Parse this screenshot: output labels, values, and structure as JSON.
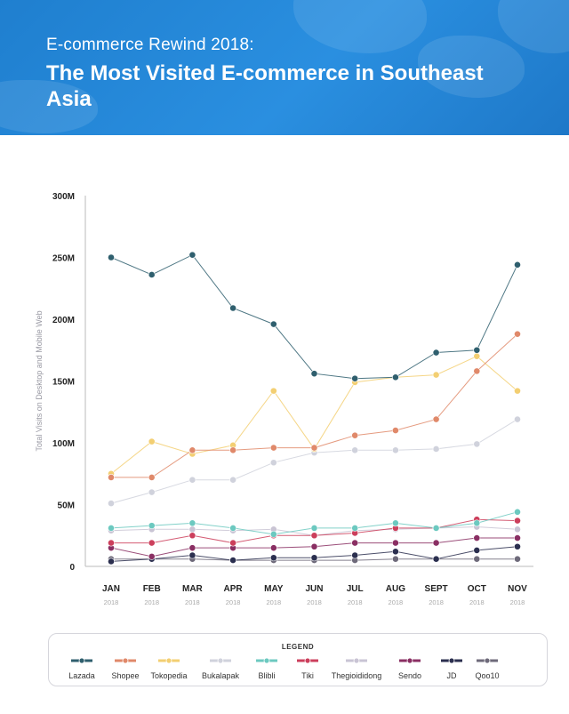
{
  "header": {
    "kicker": "E-commerce Rewind 2018:",
    "headline": "The Most Visited E-commerce in Southeast Asia"
  },
  "chart_data": {
    "type": "line",
    "ylabel": "Total Visits on Desktop and Mobile Web",
    "ylim": [
      0,
      300
    ],
    "y_ticks": [
      "0",
      "50M",
      "100M",
      "150M",
      "200M",
      "250M",
      "300M"
    ],
    "x": [
      "JAN",
      "FEB",
      "MAR",
      "APR",
      "MAY",
      "JUN",
      "JUL",
      "AUG",
      "SEPT",
      "OCT",
      "NOV"
    ],
    "x_sub": [
      "2018",
      "2018",
      "2018",
      "2018",
      "2018",
      "2018",
      "2018",
      "2018",
      "2018",
      "2018",
      "2018"
    ],
    "legend_title": "LEGEND",
    "series": [
      {
        "name": "Lazada",
        "color": "#2f5f6e",
        "values": [
          250,
          236,
          252,
          209,
          196,
          156,
          152,
          153,
          173,
          175,
          244
        ]
      },
      {
        "name": "Shopee",
        "color": "#e0896a",
        "values": [
          72,
          72,
          94,
          94,
          96,
          96,
          106,
          110,
          119,
          158,
          188
        ]
      },
      {
        "name": "Tokopedia",
        "color": "#f3cf72",
        "values": [
          75,
          101,
          91,
          98,
          142,
          95,
          149,
          153,
          155,
          170,
          142
        ]
      },
      {
        "name": "Bukalapak",
        "color": "#d0d2dc",
        "values": [
          51,
          60,
          70,
          70,
          84,
          92,
          94,
          94,
          95,
          99,
          119
        ]
      },
      {
        "name": "Blibli",
        "color": "#6cc9c0",
        "values": [
          31,
          33,
          35,
          31,
          26,
          31,
          31,
          35,
          31,
          35,
          44
        ]
      },
      {
        "name": "Tiki",
        "color": "#cc3f5c",
        "values": [
          19,
          19,
          25,
          19,
          25,
          25,
          27,
          31,
          31,
          38,
          37
        ]
      },
      {
        "name": "Thegioididong",
        "color": "#c9c4d4",
        "values": [
          29,
          30,
          30,
          29,
          30,
          25,
          29,
          30,
          31,
          32,
          30
        ]
      },
      {
        "name": "Sendo",
        "color": "#8a2f63",
        "values": [
          15,
          8,
          15,
          15,
          15,
          16,
          19,
          19,
          19,
          23,
          23
        ]
      },
      {
        "name": "JD",
        "color": "#2b2f4f",
        "values": [
          4,
          6,
          9,
          5,
          7,
          7,
          9,
          12,
          6,
          13,
          16
        ]
      },
      {
        "name": "Qoo10",
        "color": "#6e6a7a",
        "values": [
          6,
          6,
          6,
          5,
          5,
          5,
          5,
          6,
          6,
          6,
          6
        ]
      }
    ]
  }
}
